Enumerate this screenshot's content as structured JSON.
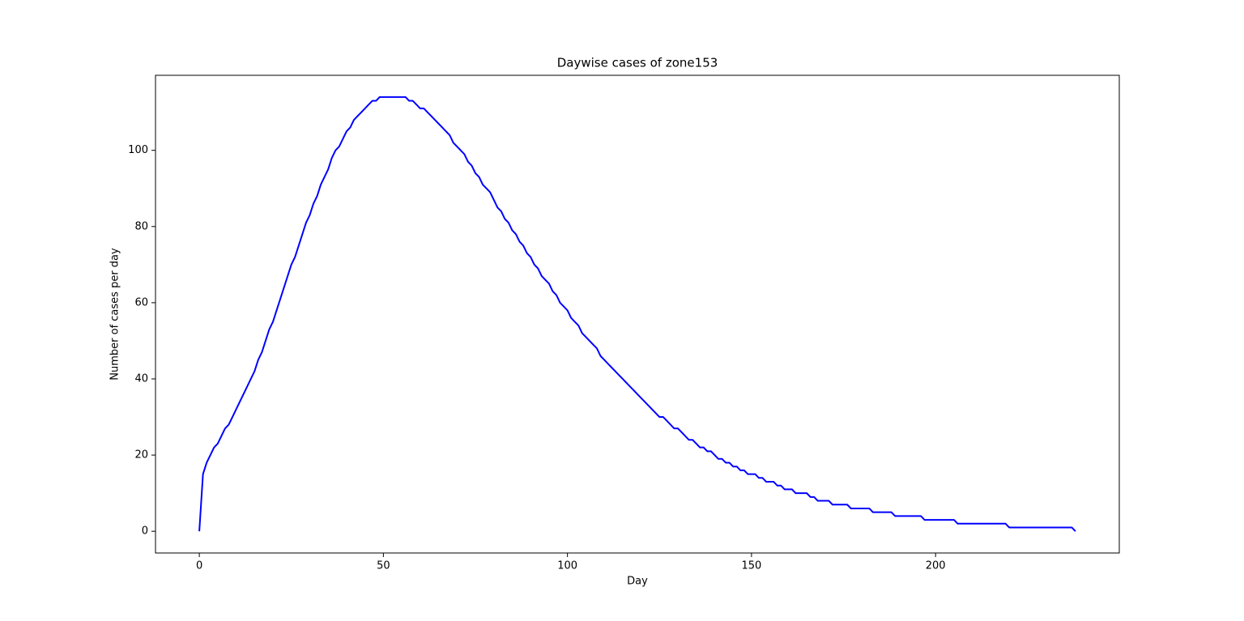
{
  "chart_data": {
    "type": "line",
    "title": "Daywise cases of zone153",
    "x_label": "Day",
    "y_label": "Number of cases per day",
    "color": "#0000ff",
    "grid": false,
    "x": [
      0,
      1,
      2,
      3,
      4,
      5,
      6,
      7,
      8,
      9,
      10,
      11,
      12,
      13,
      14,
      15,
      16,
      17,
      18,
      19,
      20,
      21,
      22,
      23,
      24,
      25,
      26,
      27,
      28,
      29,
      30,
      31,
      32,
      33,
      34,
      35,
      36,
      37,
      38,
      39,
      40,
      41,
      42,
      43,
      44,
      45,
      46,
      47,
      48,
      49,
      50,
      51,
      52,
      53,
      54,
      55,
      56,
      57,
      58,
      59,
      60,
      61,
      62,
      63,
      64,
      65,
      66,
      67,
      68,
      69,
      70,
      71,
      72,
      73,
      74,
      75,
      76,
      77,
      78,
      79,
      80,
      81,
      82,
      83,
      84,
      85,
      86,
      87,
      88,
      89,
      90,
      91,
      92,
      93,
      94,
      95,
      96,
      97,
      98,
      99,
      100,
      101,
      102,
      103,
      104,
      105,
      106,
      107,
      108,
      109,
      110,
      111,
      112,
      113,
      114,
      115,
      116,
      117,
      118,
      119,
      120,
      121,
      122,
      123,
      124,
      125,
      126,
      127,
      128,
      129,
      130,
      131,
      132,
      133,
      134,
      135,
      136,
      137,
      138,
      139,
      140,
      141,
      142,
      143,
      144,
      145,
      146,
      147,
      148,
      149,
      150,
      151,
      152,
      153,
      154,
      155,
      156,
      157,
      158,
      159,
      160,
      161,
      162,
      163,
      164,
      165,
      166,
      167,
      168,
      169,
      170,
      171,
      172,
      173,
      174,
      175,
      176,
      177,
      178,
      179,
      180,
      181,
      182,
      183,
      184,
      185,
      186,
      187,
      188,
      189,
      190,
      191,
      192,
      193,
      194,
      195,
      196,
      197,
      198,
      199,
      200,
      201,
      202,
      203,
      204,
      205,
      206,
      207,
      208,
      209,
      210,
      211,
      212,
      213,
      214,
      215,
      216,
      217,
      218,
      219,
      220,
      221,
      222,
      223,
      224,
      225,
      226,
      227,
      228,
      229,
      230,
      231,
      232,
      233,
      234,
      235,
      236,
      237,
      238
    ],
    "values": [
      0,
      15,
      18,
      20,
      22,
      23,
      25,
      27,
      28,
      30,
      32,
      34,
      36,
      38,
      40,
      42,
      45,
      47,
      50,
      53,
      55,
      58,
      61,
      64,
      67,
      70,
      72,
      75,
      78,
      81,
      83,
      86,
      88,
      91,
      93,
      95,
      98,
      100,
      101,
      103,
      105,
      106,
      108,
      109,
      110,
      111,
      112,
      113,
      113,
      114,
      114,
      114,
      114,
      114,
      114,
      114,
      114,
      113,
      113,
      112,
      111,
      111,
      110,
      109,
      108,
      107,
      106,
      105,
      104,
      102,
      101,
      100,
      99,
      97,
      96,
      94,
      93,
      91,
      90,
      89,
      87,
      85,
      84,
      82,
      81,
      79,
      78,
      76,
      75,
      73,
      72,
      70,
      69,
      67,
      66,
      65,
      63,
      62,
      60,
      59,
      58,
      56,
      55,
      54,
      52,
      51,
      50,
      49,
      48,
      46,
      45,
      44,
      43,
      42,
      41,
      40,
      39,
      38,
      37,
      36,
      35,
      34,
      33,
      32,
      31,
      30,
      30,
      29,
      28,
      27,
      27,
      26,
      25,
      24,
      24,
      23,
      22,
      22,
      21,
      21,
      20,
      19,
      19,
      18,
      18,
      17,
      17,
      16,
      16,
      15,
      15,
      15,
      14,
      14,
      13,
      13,
      13,
      12,
      12,
      11,
      11,
      11,
      10,
      10,
      10,
      10,
      9,
      9,
      8,
      8,
      8,
      8,
      7,
      7,
      7,
      7,
      7,
      6,
      6,
      6,
      6,
      6,
      6,
      5,
      5,
      5,
      5,
      5,
      5,
      4,
      4,
      4,
      4,
      4,
      4,
      4,
      4,
      3,
      3,
      3,
      3,
      3,
      3,
      3,
      3,
      3,
      2,
      2,
      2,
      2,
      2,
      2,
      2,
      2,
      2,
      2,
      2,
      2,
      2,
      2,
      1,
      1,
      1,
      1,
      1,
      1,
      1,
      1,
      1,
      1,
      1,
      1,
      1,
      1,
      1,
      1,
      1,
      1,
      0
    ],
    "xlim": [
      -11.9,
      249.9
    ],
    "xticks": [
      0,
      50,
      100,
      150,
      200
    ],
    "ylim": [
      -5.7,
      119.7
    ],
    "yticks": [
      0,
      20,
      40,
      60,
      80,
      100
    ]
  }
}
